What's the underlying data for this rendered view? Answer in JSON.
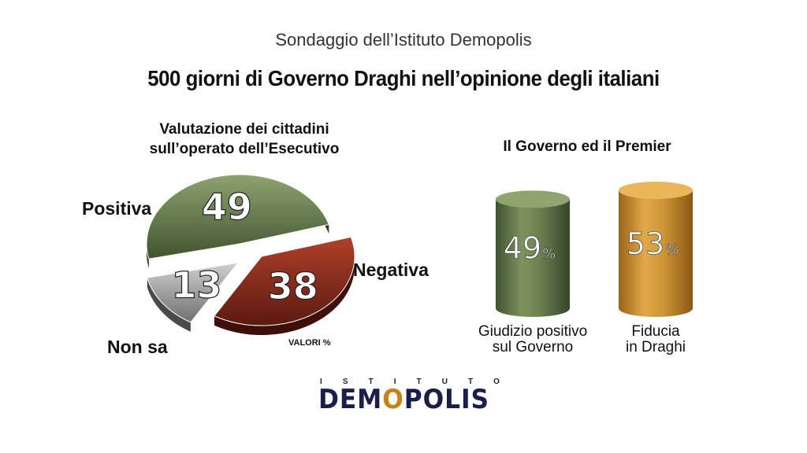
{
  "header": {
    "subtitle": "Sondaggio dell’Istituto Demopolis",
    "title": "500 giorni di Governo Draghi nell’opinione degli italiani"
  },
  "pie_title_1": "Valutazione dei cittadini",
  "pie_title_2": "sull’operato dell’Esecutivo",
  "cylinder_title": "Il Governo ed il Premier",
  "valori_note": "VALORI %",
  "logo": {
    "small_letters": [
      "I",
      "S",
      "T",
      "I",
      "T",
      "U",
      "T",
      "O"
    ],
    "word_part1": "DEM",
    "word_o": "O",
    "word_part2": "POLIS"
  },
  "colors": {
    "positiva": "#5a7040",
    "negativa": "#8a2a1a",
    "non_sa": "#9a9a9a",
    "governo": "#5f7543",
    "draghi": "#c78a2a",
    "logo": "#1a1f4a"
  },
  "chart_data": [
    {
      "type": "pie",
      "title": "Valutazione dei cittadini sull’operato dell’Esecutivo",
      "slices": [
        {
          "label": "Positiva",
          "value": 49
        },
        {
          "label": "Negativa",
          "value": 38
        },
        {
          "label": "Non sa",
          "value": 13
        }
      ]
    },
    {
      "type": "bar",
      "title": "Il Governo ed il Premier",
      "categories": [
        "Giudizio positivo sul Governo",
        "Fiducia in Draghi"
      ],
      "categories_lines": [
        [
          "Giudizio positivo",
          "sul Governo"
        ],
        [
          "Fiducia",
          "in Draghi"
        ]
      ],
      "values": [
        49,
        53
      ],
      "unit": "%"
    }
  ]
}
